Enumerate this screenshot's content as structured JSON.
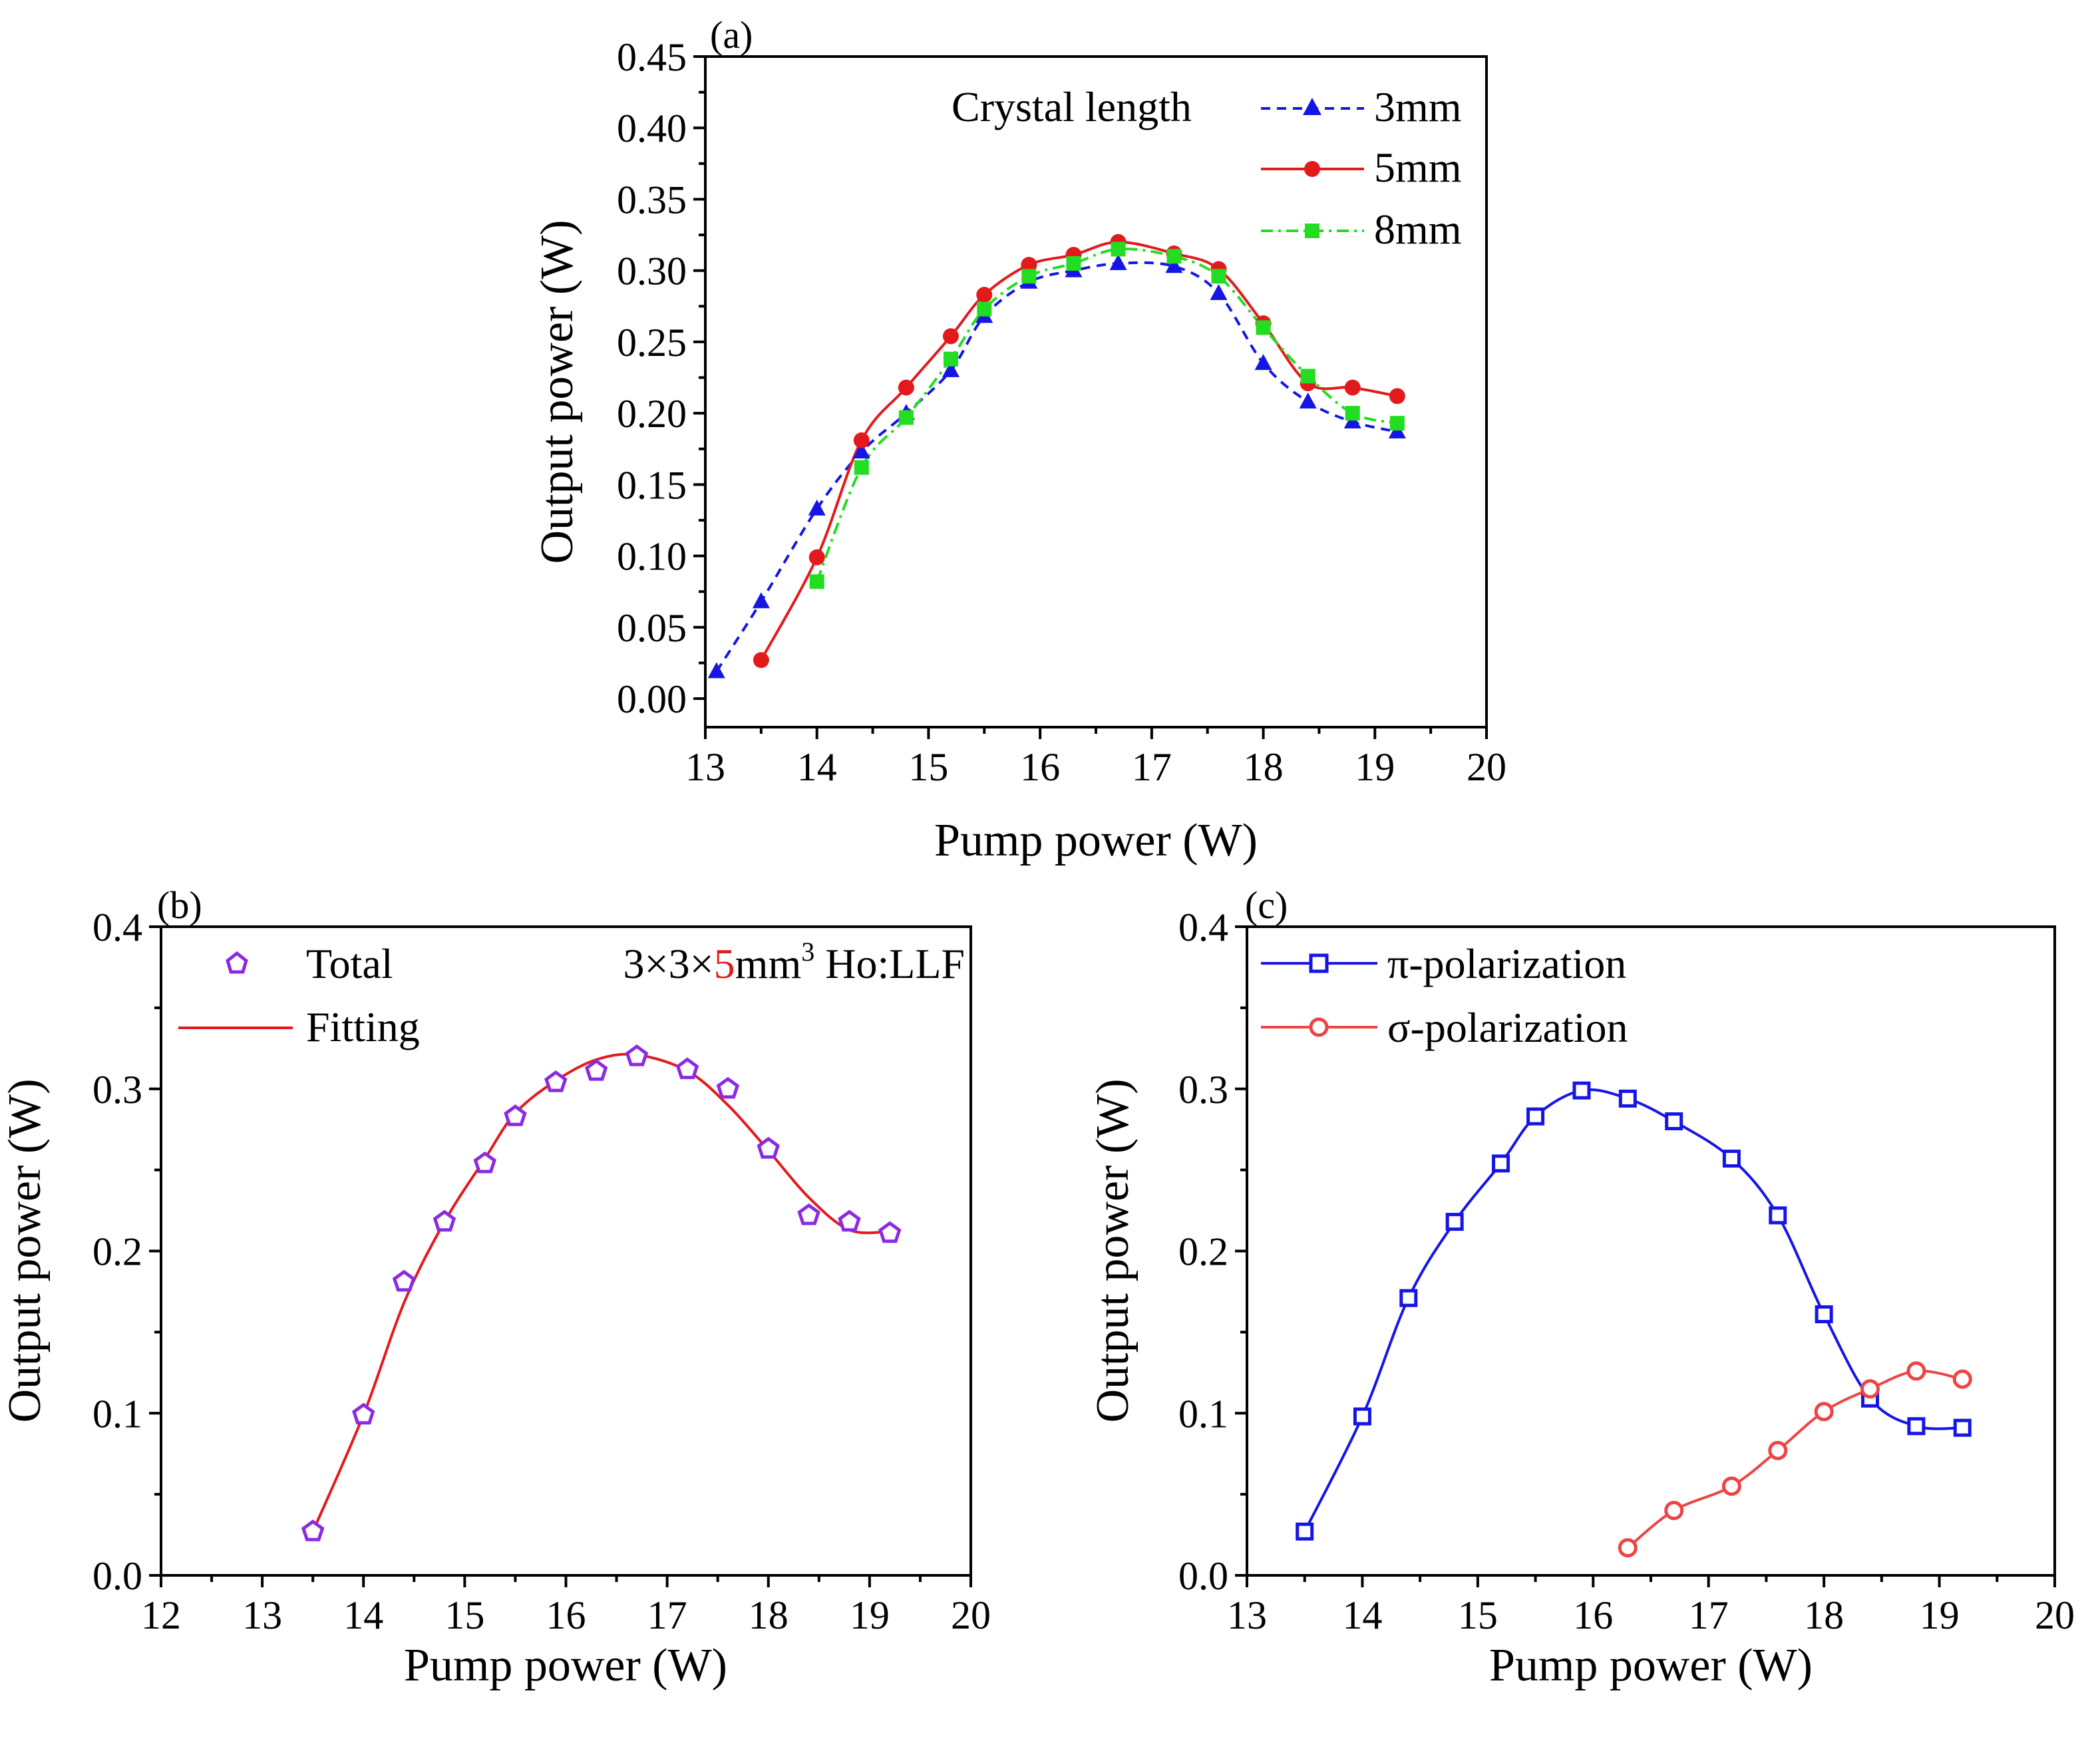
{
  "figure": {
    "background": "#ffffff"
  },
  "chart_data": [
    {
      "id": "a",
      "panel_label": "(a)",
      "type": "line",
      "xlabel": "Pump power (W)",
      "ylabel": "Output power (W)",
      "xlim": [
        13,
        20
      ],
      "ylim": [
        -0.02,
        0.45
      ],
      "xticks": [
        13,
        14,
        15,
        16,
        17,
        18,
        19,
        20
      ],
      "yticks": [
        0.0,
        0.05,
        0.1,
        0.15,
        0.2,
        0.25,
        0.3,
        0.35,
        0.4,
        0.45
      ],
      "xtick_labels": [
        "13",
        "14",
        "15",
        "16",
        "17",
        "18",
        "19",
        "20"
      ],
      "ytick_labels": [
        "0.00",
        "0.05",
        "0.10",
        "0.15",
        "0.20",
        "0.25",
        "0.30",
        "0.35",
        "0.40",
        "0.45"
      ],
      "legend_title": "Crystal length",
      "legend_position": "top-right",
      "series": [
        {
          "name": "3mm",
          "color": "#1515e6",
          "marker": "triangle",
          "dash": "dashed",
          "x": [
            13.1,
            13.5,
            14.0,
            14.4,
            14.8,
            15.2,
            15.5,
            15.9,
            16.3,
            16.7,
            17.2,
            17.6,
            18.0,
            18.4,
            18.8,
            19.2
          ],
          "y": [
            0.019,
            0.068,
            0.133,
            0.173,
            0.2,
            0.23,
            0.268,
            0.292,
            0.3,
            0.305,
            0.303,
            0.284,
            0.235,
            0.208,
            0.194,
            0.187
          ]
        },
        {
          "name": "5mm",
          "color": "#e31a1c",
          "marker": "circle",
          "dash": "solid",
          "x": [
            13.5,
            14.0,
            14.4,
            14.8,
            15.2,
            15.5,
            15.9,
            16.3,
            16.7,
            17.2,
            17.6,
            18.0,
            18.4,
            18.8,
            19.2
          ],
          "y": [
            0.027,
            0.099,
            0.181,
            0.218,
            0.254,
            0.283,
            0.304,
            0.311,
            0.32,
            0.312,
            0.301,
            0.263,
            0.221,
            0.218,
            0.212
          ]
        },
        {
          "name": "8mm",
          "color": "#22dd22",
          "marker": "square",
          "dash": "dashdot",
          "x": [
            14.0,
            14.4,
            14.8,
            15.2,
            15.5,
            15.9,
            16.3,
            16.7,
            17.2,
            17.6,
            18.0,
            18.4,
            18.8,
            19.2
          ],
          "y": [
            0.082,
            0.162,
            0.197,
            0.238,
            0.273,
            0.296,
            0.305,
            0.315,
            0.31,
            0.296,
            0.26,
            0.226,
            0.2,
            0.193
          ]
        }
      ]
    },
    {
      "id": "b",
      "panel_label": "(b)",
      "type": "scatter",
      "xlabel": "Pump power (W)",
      "ylabel": "Output power (W)",
      "xlim": [
        12,
        20
      ],
      "ylim": [
        0,
        0.4
      ],
      "xticks": [
        12,
        13,
        14,
        15,
        16,
        17,
        18,
        19,
        20
      ],
      "yticks": [
        0.0,
        0.1,
        0.2,
        0.3,
        0.4
      ],
      "xtick_labels": [
        "12",
        "13",
        "14",
        "15",
        "16",
        "17",
        "18",
        "19",
        "20"
      ],
      "ytick_labels": [
        "0.0",
        "0.1",
        "0.2",
        "0.3",
        "0.4"
      ],
      "legend_position": "top-left",
      "annotation": {
        "p1": "3×3×",
        "p2": "5",
        "p3": "mm",
        "sup": "3",
        "p4": " Ho:LLF",
        "highlight_color": "#e31a1c"
      },
      "series": [
        {
          "name": "Total",
          "color": "#8a2be2",
          "marker": "pentagon-open",
          "x": [
            13.5,
            14.0,
            14.4,
            14.8,
            15.2,
            15.5,
            15.9,
            16.3,
            16.7,
            17.2,
            17.6,
            18.0,
            18.4,
            18.8,
            19.2
          ],
          "y": [
            0.027,
            0.099,
            0.181,
            0.218,
            0.254,
            0.283,
            0.304,
            0.311,
            0.32,
            0.312,
            0.3,
            0.263,
            0.222,
            0.218,
            0.211
          ]
        },
        {
          "name": "Fitting",
          "color": "#e31a1c",
          "marker": "none",
          "x": [
            13.5,
            14.0,
            14.4,
            14.8,
            15.2,
            15.5,
            15.9,
            16.3,
            16.7,
            17.2,
            17.6,
            18.0,
            18.4,
            18.8,
            19.2
          ],
          "y": [
            0.027,
            0.099,
            0.168,
            0.218,
            0.257,
            0.285,
            0.305,
            0.318,
            0.321,
            0.311,
            0.29,
            0.262,
            0.233,
            0.213,
            0.212
          ]
        }
      ]
    },
    {
      "id": "c",
      "panel_label": "(c)",
      "type": "line",
      "xlabel": "Pump power (W)",
      "ylabel": "Output power (W)",
      "xlim": [
        13,
        20
      ],
      "ylim": [
        0,
        0.4
      ],
      "xticks": [
        13,
        14,
        15,
        16,
        17,
        18,
        19,
        20
      ],
      "yticks": [
        0.0,
        0.1,
        0.2,
        0.3,
        0.4
      ],
      "xtick_labels": [
        "13",
        "14",
        "15",
        "16",
        "17",
        "18",
        "19",
        "20"
      ],
      "ytick_labels": [
        "0.0",
        "0.1",
        "0.2",
        "0.3",
        "0.4"
      ],
      "legend_position": "top-left",
      "series": [
        {
          "name": "π-polarization",
          "color": "#1515e6",
          "marker": "square-open",
          "x": [
            13.5,
            14.0,
            14.4,
            14.8,
            15.2,
            15.5,
            15.9,
            16.3,
            16.7,
            17.2,
            17.6,
            18.0,
            18.4,
            18.8,
            19.2
          ],
          "y": [
            0.027,
            0.098,
            0.171,
            0.218,
            0.254,
            0.283,
            0.299,
            0.294,
            0.28,
            0.257,
            0.222,
            0.161,
            0.109,
            0.092,
            0.091
          ]
        },
        {
          "name": "σ-polarization",
          "color": "#ee4444",
          "marker": "circle-open",
          "x": [
            16.3,
            16.7,
            17.2,
            17.6,
            18.0,
            18.4,
            18.8,
            19.2
          ],
          "y": [
            0.017,
            0.04,
            0.055,
            0.077,
            0.101,
            0.115,
            0.126,
            0.121
          ]
        }
      ]
    }
  ]
}
